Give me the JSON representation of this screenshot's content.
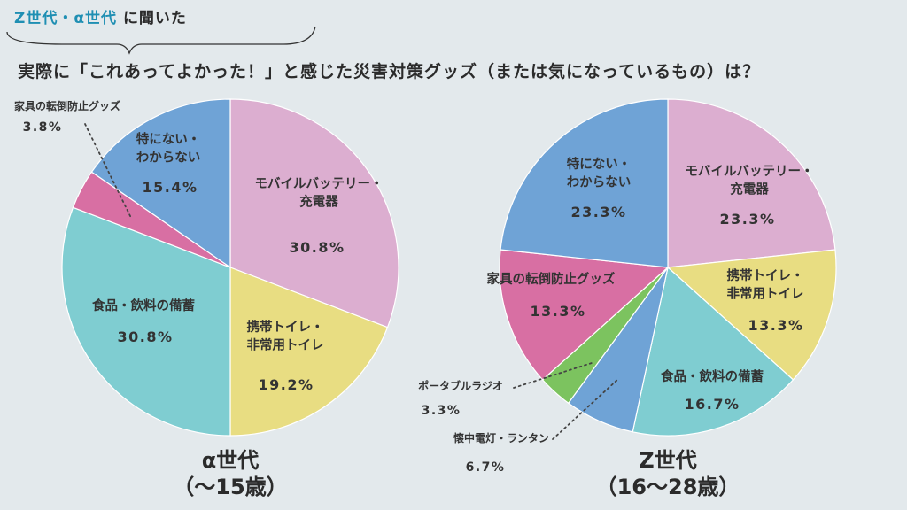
{
  "header": {
    "tag_part1": "Z世代・α世代",
    "tag_part2": "に聞いた",
    "question": "実際に「これあってよかった！」と感じた災害対策グッズ（または気になっているもの）は？"
  },
  "colors": {
    "モバイルバッテリー・充電器": "#dcaed0",
    "携帯トイレ・非常用トイレ": "#e8dd82",
    "食品・飲料の備蓄": "#7fcdd1",
    "家具の転倒防止グッズ": "#d86fa3",
    "特にない・わからない": "#6fa3d6",
    "ポータブルラジオ": "#7cc35f",
    "懐中電灯・ランタン": "#6fa3d6"
  },
  "chart_data": [
    {
      "type": "pie",
      "title": "α世代",
      "subtitle": "（～15歳）",
      "slices": [
        {
          "label": "モバイルバッテリー・充電器",
          "value": 30.8,
          "text": "30.8%"
        },
        {
          "label": "携帯トイレ・非常用トイレ",
          "value": 19.2,
          "text": "19.2%"
        },
        {
          "label": "食品・飲料の備蓄",
          "value": 30.8,
          "text": "30.8%"
        },
        {
          "label": "家具の転倒防止グッズ",
          "value": 3.8,
          "text": "3.8%"
        },
        {
          "label": "特にない・わからない",
          "value": 15.4,
          "text": "15.4%"
        }
      ]
    },
    {
      "type": "pie",
      "title": "Z世代",
      "subtitle": "（16～28歳）",
      "slices": [
        {
          "label": "モバイルバッテリー・充電器",
          "value": 23.3,
          "text": "23.3%"
        },
        {
          "label": "携帯トイレ・非常用トイレ",
          "value": 13.3,
          "text": "13.3%"
        },
        {
          "label": "食品・飲料の備蓄",
          "value": 16.7,
          "text": "16.7%"
        },
        {
          "label": "懐中電灯・ランタン",
          "value": 6.7,
          "text": "6.7%"
        },
        {
          "label": "ポータブルラジオ",
          "value": 3.3,
          "text": "3.3%"
        },
        {
          "label": "家具の転倒防止グッズ",
          "value": 13.3,
          "text": "13.3%"
        },
        {
          "label": "特にない・わからない",
          "value": 23.3,
          "text": "23.3%"
        }
      ]
    }
  ]
}
